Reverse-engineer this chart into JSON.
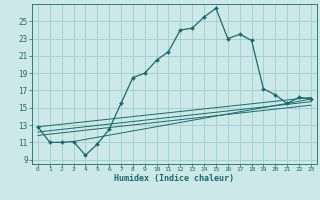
{
  "xlabel": "Humidex (Indice chaleur)",
  "bg_color": "#cce8e8",
  "grid_color": "#9fcece",
  "line_color": "#1a6b6b",
  "xlim": [
    -0.5,
    23.5
  ],
  "ylim": [
    8.5,
    27.0
  ],
  "xticks": [
    0,
    1,
    2,
    3,
    4,
    5,
    6,
    7,
    8,
    9,
    10,
    11,
    12,
    13,
    14,
    15,
    16,
    17,
    18,
    19,
    20,
    21,
    22,
    23
  ],
  "yticks": [
    9,
    11,
    13,
    15,
    17,
    19,
    21,
    23,
    25
  ],
  "main_x": [
    0,
    1,
    2,
    3,
    4,
    5,
    6,
    7,
    8,
    9,
    10,
    11,
    12,
    13,
    14,
    15,
    16,
    17,
    18,
    19,
    20,
    21,
    22,
    23
  ],
  "main_y": [
    12.8,
    11.0,
    11.0,
    11.1,
    9.5,
    10.8,
    12.5,
    15.5,
    18.5,
    19.0,
    20.5,
    21.5,
    24.0,
    24.2,
    25.5,
    26.5,
    23.0,
    23.5,
    22.8,
    17.2,
    16.5,
    15.5,
    16.2,
    16.0
  ],
  "ref_lines": [
    {
      "x": [
        0,
        23
      ],
      "y": [
        12.8,
        16.2
      ]
    },
    {
      "x": [
        0,
        23
      ],
      "y": [
        12.2,
        15.7
      ]
    },
    {
      "x": [
        0,
        23
      ],
      "y": [
        11.8,
        15.3
      ]
    },
    {
      "x": [
        3,
        23
      ],
      "y": [
        11.1,
        16.0
      ]
    }
  ]
}
